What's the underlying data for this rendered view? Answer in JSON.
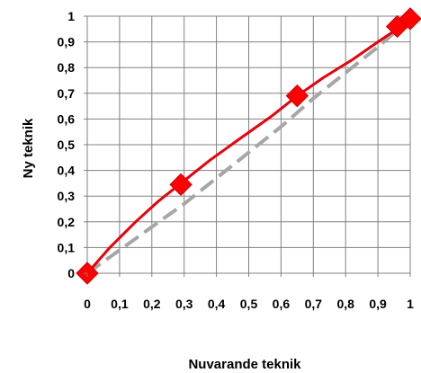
{
  "chart_data": {
    "type": "line",
    "xlabel": "Nuvarande teknik",
    "ylabel": "Ny teknik",
    "xlim": [
      0,
      1
    ],
    "ylim": [
      0,
      1
    ],
    "grid": true,
    "x_tick_labels": [
      "0",
      "0,1",
      "0,2",
      "0,3",
      "0,4",
      "0,5",
      "0,6",
      "0,7",
      "0,8",
      "0,9",
      "1"
    ],
    "y_tick_labels": [
      "0",
      "0,1",
      "0,2",
      "0,3",
      "0,4",
      "0,5",
      "0,6",
      "0,7",
      "0,8",
      "0,9",
      "1"
    ],
    "series": [
      {
        "style": "solid",
        "color": "#e8000b",
        "x": [
          0,
          0.07,
          0.15,
          0.22,
          0.29,
          0.38,
          0.48,
          0.57,
          0.65,
          0.73,
          0.82,
          0.9,
          0.96,
          1.0
        ],
        "y": [
          0,
          0.1,
          0.2,
          0.28,
          0.35,
          0.44,
          0.53,
          0.61,
          0.69,
          0.76,
          0.83,
          0.9,
          0.95,
          0.99
        ]
      },
      {
        "style": "dashed",
        "color": "#a6a6a6",
        "x": [
          0,
          0.1,
          0.2,
          0.3,
          0.4,
          0.5,
          0.6,
          0.7,
          0.8,
          0.9,
          1.0
        ],
        "y": [
          0,
          0.09,
          0.18,
          0.27,
          0.37,
          0.47,
          0.57,
          0.68,
          0.78,
          0.88,
          0.99
        ]
      }
    ],
    "markers": {
      "shape": "diamond",
      "color": "#ff0000",
      "x": [
        0,
        0.29,
        0.65,
        0.96,
        1.0
      ],
      "y": [
        0,
        0.345,
        0.69,
        0.96,
        0.99
      ]
    }
  }
}
